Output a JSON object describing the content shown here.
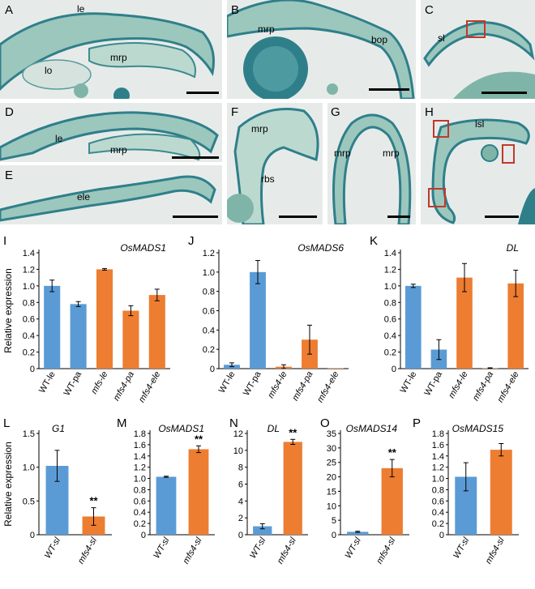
{
  "panel_letters": {
    "A": "A",
    "B": "B",
    "C": "C",
    "D": "D",
    "E": "E",
    "F": "F",
    "G": "G",
    "H": "H",
    "I": "I",
    "J": "J",
    "K": "K",
    "L": "L",
    "M": "M",
    "N": "N",
    "O": "O",
    "P": "P"
  },
  "image_labels": {
    "A_le": "le",
    "A_lo": "lo",
    "A_mrp": "mrp",
    "B_mrp": "mrp",
    "B_bop": "bop",
    "C_sl": "sl",
    "D_le": "le",
    "D_mrp": "mrp",
    "E_ele": "ele",
    "F_mrp": "mrp",
    "F_rbs": "rbs",
    "G_mrp1": "mrp",
    "G_mrp2": "mrp",
    "H_lsl": "lsl"
  },
  "colors": {
    "wt": "#5b9bd5",
    "mutant": "#ed7d31",
    "tissue": "#7fb5a8",
    "tissue_dark": "#2f7f8a",
    "background": "#e6ebe9"
  },
  "chart_data": [
    {
      "id": "I",
      "type": "bar",
      "title": "OsMADS1",
      "ylabel": "Relative expression",
      "categories": [
        "WT-le",
        "WT-pa",
        "mfs-le",
        "mfs4-pa",
        "mfs4-ele"
      ],
      "values": [
        1.0,
        0.78,
        1.2,
        0.7,
        0.89
      ],
      "errors": [
        0.07,
        0.03,
        0.01,
        0.06,
        0.07
      ],
      "colors": [
        "wt",
        "wt",
        "mutant",
        "mutant",
        "mutant"
      ],
      "yticks": [
        "0",
        "0.2",
        "0.4",
        "0.6",
        "0.8",
        "1.0",
        "1.2",
        "1.4"
      ],
      "ylim": [
        0,
        1.4
      ],
      "stars": [
        "",
        "",
        "",
        "",
        ""
      ]
    },
    {
      "id": "J",
      "type": "bar",
      "title": "OsMADS6",
      "ylabel": "",
      "categories": [
        "WT-le",
        "WT-pa",
        "mfs4-le",
        "mfs4-pa",
        "mfs4-ele"
      ],
      "values": [
        0.04,
        1.0,
        0.02,
        0.3,
        0.0
      ],
      "errors": [
        0.02,
        0.12,
        0.02,
        0.15,
        0.0
      ],
      "colors": [
        "wt",
        "wt",
        "mutant",
        "mutant",
        "mutant"
      ],
      "yticks": [
        "0",
        "0.2",
        "0.4",
        "0.6",
        "0.8",
        "1.0",
        "1.2"
      ],
      "ylim": [
        0,
        1.2
      ],
      "stars": [
        "",
        "",
        "",
        "",
        ""
      ]
    },
    {
      "id": "K",
      "type": "bar",
      "title": "DL",
      "ylabel": "",
      "categories": [
        "WT-le",
        "WT-pa",
        "mfs4-le",
        "mfs4-pa",
        "mfs4-ele"
      ],
      "values": [
        1.0,
        0.23,
        1.1,
        0.0,
        1.03
      ],
      "errors": [
        0.02,
        0.12,
        0.17,
        0.01,
        0.16
      ],
      "colors": [
        "wt",
        "wt",
        "mutant",
        "mutant",
        "mutant"
      ],
      "yticks": [
        "0",
        "0.2",
        "0.4",
        "0.6",
        "0.8",
        "1.0",
        "1.2",
        "1.4"
      ],
      "ylim": [
        0,
        1.4
      ],
      "stars": [
        "",
        "",
        "",
        "",
        ""
      ]
    },
    {
      "id": "L",
      "type": "bar",
      "title": "G1",
      "ylabel": "Relative expression",
      "categories": [
        "WT-sl",
        "mfs4-sl"
      ],
      "values": [
        1.02,
        0.27
      ],
      "errors": [
        0.23,
        0.13
      ],
      "colors": [
        "wt",
        "mutant"
      ],
      "yticks": [
        "0",
        "0.5",
        "1.0",
        "1.5"
      ],
      "ylim": [
        0,
        1.5
      ],
      "stars": [
        "",
        "**"
      ]
    },
    {
      "id": "M",
      "type": "bar",
      "title": "OsMADS1",
      "ylabel": "",
      "categories": [
        "WT-sl",
        "mfs4-sl"
      ],
      "values": [
        1.03,
        1.52
      ],
      "errors": [
        0.01,
        0.06
      ],
      "colors": [
        "wt",
        "mutant"
      ],
      "yticks": [
        "0",
        "0.2",
        "0.4",
        "0.6",
        "0.8",
        "1.0",
        "1.2",
        "1.4",
        "1.6",
        "1.8"
      ],
      "ylim": [
        0,
        1.8
      ],
      "stars": [
        "",
        "**"
      ]
    },
    {
      "id": "N",
      "type": "bar",
      "title": "DL",
      "ylabel": "",
      "categories": [
        "WT-sl",
        "mfs4-sl"
      ],
      "values": [
        1.0,
        11.0
      ],
      "errors": [
        0.3,
        0.3
      ],
      "colors": [
        "wt",
        "mutant"
      ],
      "yticks": [
        "0",
        "2",
        "4",
        "6",
        "8",
        "10",
        "12"
      ],
      "ylim": [
        0,
        12
      ],
      "stars": [
        "",
        "**"
      ]
    },
    {
      "id": "O",
      "type": "bar",
      "title": "OsMADS14",
      "ylabel": "",
      "categories": [
        "WT-sl",
        "mfs4-sl"
      ],
      "values": [
        1.0,
        23.0
      ],
      "errors": [
        0.2,
        3.0
      ],
      "colors": [
        "wt",
        "mutant"
      ],
      "yticks": [
        "0",
        "5",
        "10",
        "15",
        "20",
        "25",
        "30",
        "35"
      ],
      "ylim": [
        0,
        35
      ],
      "stars": [
        "",
        "**"
      ]
    },
    {
      "id": "P",
      "type": "bar",
      "title": "OsMADS15",
      "ylabel": "",
      "categories": [
        "WT-sl",
        "mfs4-sl"
      ],
      "values": [
        1.03,
        1.51
      ],
      "errors": [
        0.25,
        0.11
      ],
      "colors": [
        "wt",
        "mutant"
      ],
      "yticks": [
        "0",
        "0.2",
        "0.4",
        "0.6",
        "0.8",
        "1.0",
        "1.2",
        "1.4",
        "1.6",
        "1.8"
      ],
      "ylim": [
        0,
        1.8
      ],
      "stars": [
        "",
        ""
      ]
    }
  ]
}
